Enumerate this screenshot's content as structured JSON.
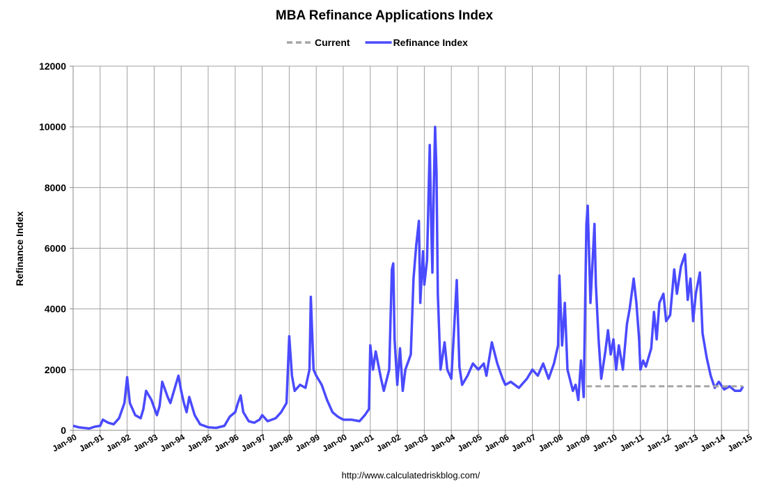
{
  "chart_data": {
    "type": "line",
    "title": "MBA Refinance Applications Index",
    "ylabel": "Refinance Index",
    "source": "http://www.calculatedriskblog.com/",
    "xlim": [
      1990,
      2015
    ],
    "ylim": [
      0,
      12000
    ],
    "yticks": [
      0,
      2000,
      4000,
      6000,
      8000,
      10000,
      12000
    ],
    "xticks": [
      {
        "value": 1990,
        "label": "Jan-90"
      },
      {
        "value": 1991,
        "label": "Jan-91"
      },
      {
        "value": 1992,
        "label": "Jan-92"
      },
      {
        "value": 1993,
        "label": "Jan-93"
      },
      {
        "value": 1994,
        "label": "Jan-94"
      },
      {
        "value": 1995,
        "label": "Jan-95"
      },
      {
        "value": 1996,
        "label": "Jan-96"
      },
      {
        "value": 1997,
        "label": "Jan-97"
      },
      {
        "value": 1998,
        "label": "Jan-98"
      },
      {
        "value": 1999,
        "label": "Jan-99"
      },
      {
        "value": 2000,
        "label": "Jan-00"
      },
      {
        "value": 2001,
        "label": "Jan-01"
      },
      {
        "value": 2002,
        "label": "Jan-02"
      },
      {
        "value": 2003,
        "label": "Jan-03"
      },
      {
        "value": 2004,
        "label": "Jan-04"
      },
      {
        "value": 2005,
        "label": "Jan-05"
      },
      {
        "value": 2006,
        "label": "Jan-06"
      },
      {
        "value": 2007,
        "label": "Jan-07"
      },
      {
        "value": 2008,
        "label": "Jan-08"
      },
      {
        "value": 2009,
        "label": "Jan-09"
      },
      {
        "value": 2010,
        "label": "Jan-10"
      },
      {
        "value": 2011,
        "label": "Jan-11"
      },
      {
        "value": 2012,
        "label": "Jan-12"
      },
      {
        "value": 2013,
        "label": "Jan-13"
      },
      {
        "value": 2014,
        "label": "Jan-14"
      },
      {
        "value": 2015,
        "label": "Jan-15"
      }
    ],
    "grid": true,
    "legend": "top",
    "series": [
      {
        "name": "Current",
        "color": "#a6a6a6",
        "dashed": true,
        "x": [
          2009.0,
          2014.8
        ],
        "values": [
          1450,
          1450
        ]
      },
      {
        "name": "Refinance Index",
        "color": "#4a4aff",
        "dashed": false,
        "x": [
          1990.0,
          1990.2,
          1990.4,
          1990.6,
          1990.8,
          1991.0,
          1991.1,
          1991.3,
          1991.5,
          1991.7,
          1991.9,
          1992.0,
          1992.1,
          1992.3,
          1992.5,
          1992.6,
          1992.7,
          1992.9,
          1993.1,
          1993.2,
          1993.3,
          1993.5,
          1993.6,
          1993.8,
          1993.9,
          1994.0,
          1994.1,
          1994.2,
          1994.3,
          1994.5,
          1994.7,
          1995.0,
          1995.3,
          1995.6,
          1995.8,
          1996.0,
          1996.1,
          1996.2,
          1996.3,
          1996.5,
          1996.7,
          1996.9,
          1997.0,
          1997.2,
          1997.5,
          1997.7,
          1997.9,
          1998.0,
          1998.1,
          1998.2,
          1998.4,
          1998.6,
          1998.75,
          1998.8,
          1998.9,
          1999.0,
          1999.2,
          1999.4,
          1999.6,
          1999.8,
          2000.0,
          2000.3,
          2000.6,
          2000.8,
          2000.95,
          2001.0,
          2001.1,
          2001.2,
          2001.4,
          2001.5,
          2001.7,
          2001.8,
          2001.85,
          2001.9,
          2002.0,
          2002.1,
          2002.2,
          2002.3,
          2002.5,
          2002.6,
          2002.7,
          2002.8,
          2002.85,
          2002.95,
          2003.0,
          2003.1,
          2003.2,
          2003.25,
          2003.3,
          2003.35,
          2003.4,
          2003.45,
          2003.5,
          2003.6,
          2003.75,
          2003.85,
          2004.0,
          2004.1,
          2004.2,
          2004.3,
          2004.4,
          2004.6,
          2004.8,
          2005.0,
          2005.2,
          2005.3,
          2005.5,
          2005.7,
          2005.9,
          2006.0,
          2006.2,
          2006.5,
          2006.8,
          2007.0,
          2007.2,
          2007.4,
          2007.6,
          2007.8,
          2007.95,
          2008.0,
          2008.1,
          2008.2,
          2008.3,
          2008.5,
          2008.6,
          2008.7,
          2008.8,
          2008.9,
          2009.0,
          2009.05,
          2009.15,
          2009.3,
          2009.35,
          2009.45,
          2009.55,
          2009.7,
          2009.8,
          2009.9,
          2010.0,
          2010.1,
          2010.2,
          2010.35,
          2010.5,
          2010.6,
          2010.75,
          2010.85,
          2010.95,
          2011.0,
          2011.1,
          2011.2,
          2011.4,
          2011.5,
          2011.6,
          2011.7,
          2011.85,
          2011.95,
          2012.1,
          2012.25,
          2012.35,
          2012.5,
          2012.65,
          2012.75,
          2012.85,
          2012.95,
          2013.05,
          2013.2,
          2013.3,
          2013.45,
          2013.6,
          2013.75,
          2013.9,
          2014.1,
          2014.3,
          2014.5,
          2014.7,
          2014.8
        ],
        "values": [
          150,
          100,
          80,
          60,
          120,
          150,
          350,
          250,
          200,
          400,
          900,
          1750,
          900,
          500,
          400,
          700,
          1300,
          1000,
          500,
          800,
          1600,
          1100,
          900,
          1500,
          1800,
          1300,
          900,
          600,
          1100,
          500,
          200,
          100,
          80,
          150,
          450,
          600,
          900,
          1150,
          600,
          300,
          250,
          350,
          500,
          300,
          400,
          600,
          900,
          3100,
          1800,
          1300,
          1500,
          1400,
          2000,
          4400,
          2000,
          1800,
          1500,
          1000,
          600,
          450,
          350,
          350,
          300,
          500,
          700,
          2800,
          2000,
          2600,
          1700,
          1300,
          2000,
          5300,
          5500,
          3000,
          1500,
          2700,
          1300,
          2000,
          2500,
          5000,
          6100,
          6900,
          4200,
          5900,
          4800,
          5600,
          9400,
          7000,
          5200,
          8000,
          10000,
          8500,
          4500,
          2000,
          2900,
          2000,
          1700,
          3300,
          4950,
          2100,
          1500,
          1800,
          2200,
          2000,
          2200,
          1800,
          2900,
          2200,
          1700,
          1500,
          1600,
          1400,
          1700,
          2000,
          1800,
          2200,
          1700,
          2200,
          2800,
          5100,
          2800,
          4200,
          2000,
          1300,
          1500,
          1000,
          2300,
          1100,
          6800,
          7400,
          4200,
          6800,
          4800,
          3000,
          1700,
          2600,
          3300,
          2500,
          3000,
          2000,
          2800,
          2000,
          3500,
          4000,
          5000,
          4200,
          3000,
          2000,
          2300,
          2100,
          2700,
          3900,
          3000,
          4200,
          4500,
          3600,
          3800,
          5300,
          4500,
          5400,
          5800,
          4300,
          5000,
          3600,
          4500,
          5200,
          3200,
          2400,
          1800,
          1400,
          1600,
          1350,
          1450,
          1300,
          1300,
          1450
        ]
      }
    ]
  }
}
